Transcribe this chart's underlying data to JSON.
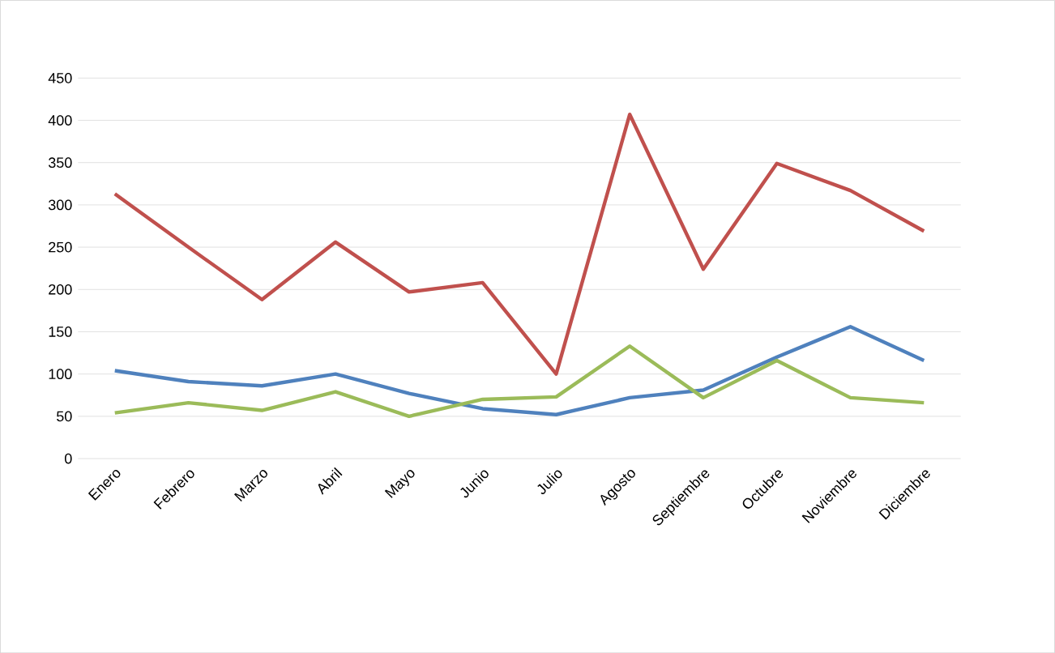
{
  "chart_data": {
    "type": "line",
    "categories": [
      "Enero",
      "Febrero",
      "Marzo",
      "Abril",
      "Mayo",
      "Junio",
      "Julio",
      "Agosto",
      "Septiembre",
      "Octubre",
      "Noviembre",
      "Diciembre"
    ],
    "series": [
      {
        "color": "#4f81bd",
        "values": [
          104,
          91,
          86,
          100,
          77,
          59,
          52,
          72,
          81,
          120,
          156,
          116
        ]
      },
      {
        "color": "#c0504d",
        "values": [
          313,
          250,
          188,
          256,
          197,
          208,
          100,
          407,
          224,
          349,
          317,
          269
        ]
      },
      {
        "color": "#9bbb59",
        "values": [
          54,
          66,
          57,
          79,
          50,
          70,
          73,
          133,
          72,
          116,
          72,
          66
        ]
      }
    ],
    "ylim": [
      0,
      450
    ],
    "yticks": [
      0,
      50,
      100,
      150,
      200,
      250,
      300,
      350,
      400,
      450
    ],
    "grid": "y",
    "marker": "none",
    "line_style": "solid"
  }
}
